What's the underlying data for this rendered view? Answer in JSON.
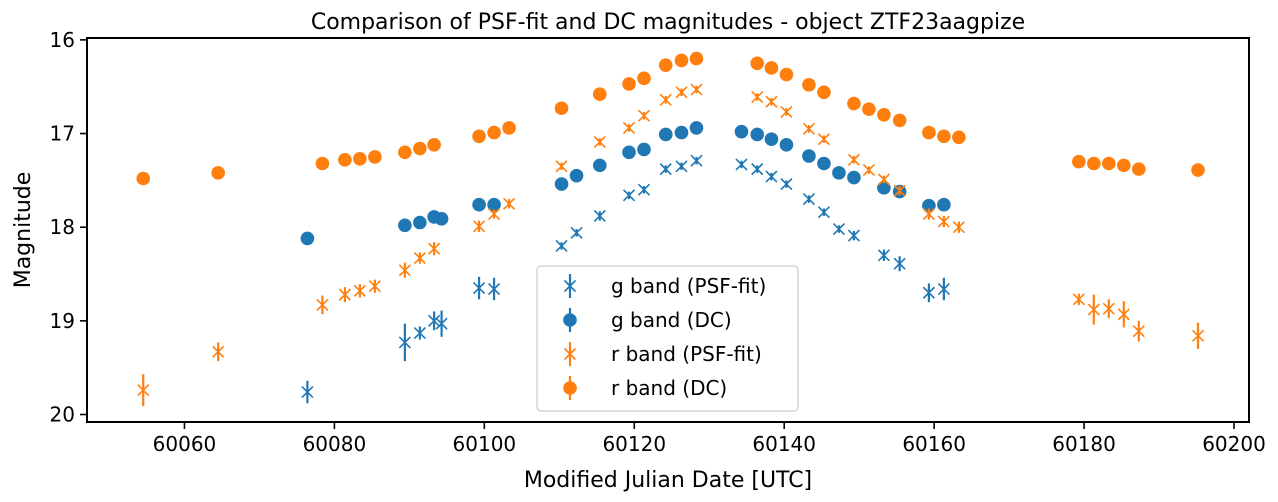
{
  "chart_data": {
    "type": "scatter",
    "title": "Comparison of PSF-fit and DC magnitudes - object ZTF23aagpize",
    "xlabel": "Modified Julian Date [UTC]",
    "ylabel": "Magnitude",
    "xlim": [
      60047,
      60202
    ],
    "ylim": [
      20.08,
      15.98
    ],
    "y_inverted": true,
    "xticks": [
      60060,
      60080,
      60100,
      60120,
      60140,
      60160,
      60180,
      60200
    ],
    "yticks": [
      16,
      17,
      18,
      19,
      20
    ],
    "grid": false,
    "legend_position": "bottom-center",
    "colors": {
      "g": "#1f77b4",
      "r": "#ff7f0e"
    },
    "series": [
      {
        "name": "g band (PSF-fit)",
        "marker": "x",
        "color": "#1f77b4",
        "x": [
          60076.4,
          60089.4,
          60091.4,
          60093.3,
          60094.3,
          60099.3,
          60101.3,
          60110.3,
          60112.3,
          60115.4,
          60119.3,
          60121.3,
          60124.2,
          60126.3,
          60128.3,
          60134.3,
          60136.4,
          60138.3,
          60140.3,
          60143.3,
          60145.3,
          60147.3,
          60149.3,
          60153.3,
          60155.4,
          60159.3,
          60161.3
        ],
        "y": [
          19.76,
          19.23,
          19.13,
          19.0,
          19.03,
          18.65,
          18.66,
          18.2,
          18.06,
          17.88,
          17.66,
          17.6,
          17.38,
          17.35,
          17.29,
          17.33,
          17.38,
          17.46,
          17.54,
          17.7,
          17.84,
          18.02,
          18.09,
          18.3,
          18.39,
          18.7,
          18.66
        ],
        "yerr": [
          0.12,
          0.2,
          0.07,
          0.1,
          0.14,
          0.12,
          0.12,
          0.04,
          0.04,
          0.05,
          0.04,
          0.04,
          0.04,
          0.04,
          0.04,
          0.04,
          0.04,
          0.04,
          0.04,
          0.04,
          0.04,
          0.04,
          0.05,
          0.06,
          0.08,
          0.1,
          0.12
        ]
      },
      {
        "name": "g band (DC)",
        "marker": "o",
        "color": "#1f77b4",
        "x": [
          60076.4,
          60089.4,
          60091.4,
          60093.3,
          60094.3,
          60099.3,
          60101.3,
          60110.3,
          60112.3,
          60115.4,
          60119.3,
          60121.3,
          60124.2,
          60126.3,
          60128.3,
          60134.3,
          60136.4,
          60138.3,
          60140.3,
          60143.3,
          60145.3,
          60147.3,
          60149.3,
          60153.3,
          60155.4,
          60159.3,
          60161.3
        ],
        "y": [
          18.12,
          17.98,
          17.95,
          17.89,
          17.91,
          17.76,
          17.76,
          17.54,
          17.45,
          17.34,
          17.2,
          17.17,
          17.01,
          16.99,
          16.94,
          16.98,
          17.01,
          17.06,
          17.12,
          17.24,
          17.32,
          17.42,
          17.47,
          17.58,
          17.62,
          17.77,
          17.76
        ],
        "yerr": []
      },
      {
        "name": "r band (PSF-fit)",
        "marker": "x",
        "color": "#ff7f0e",
        "x": [
          60054.5,
          60064.5,
          60078.4,
          60081.4,
          60083.4,
          60085.4,
          60089.4,
          60091.4,
          60093.3,
          60099.3,
          60101.3,
          60103.3,
          60110.3,
          60115.4,
          60119.3,
          60121.3,
          60124.2,
          60126.3,
          60128.3,
          60136.4,
          60138.3,
          60140.3,
          60143.3,
          60145.3,
          60149.3,
          60151.3,
          60153.3,
          60155.4,
          60159.3,
          60161.3,
          60163.3,
          60179.3,
          60181.3,
          60183.3,
          60185.3,
          60187.3,
          60195.2
        ],
        "y": [
          19.74,
          19.33,
          18.83,
          18.72,
          18.68,
          18.63,
          18.46,
          18.33,
          18.23,
          17.99,
          17.86,
          17.75,
          17.35,
          17.09,
          16.94,
          16.81,
          16.64,
          16.56,
          16.53,
          16.61,
          16.66,
          16.77,
          16.95,
          17.06,
          17.28,
          17.39,
          17.49,
          17.61,
          17.86,
          17.94,
          18.0,
          18.77,
          18.88,
          18.87,
          18.93,
          19.11,
          19.16
        ],
        "yerr": [
          0.17,
          0.1,
          0.1,
          0.08,
          0.07,
          0.07,
          0.08,
          0.06,
          0.07,
          0.06,
          0.05,
          0.05,
          0.04,
          0.04,
          0.04,
          0.04,
          0.04,
          0.04,
          0.04,
          0.04,
          0.04,
          0.04,
          0.04,
          0.04,
          0.04,
          0.04,
          0.04,
          0.05,
          0.06,
          0.06,
          0.06,
          0.06,
          0.16,
          0.1,
          0.14,
          0.11,
          0.14
        ]
      },
      {
        "name": "r band (DC)",
        "marker": "o",
        "color": "#ff7f0e",
        "x": [
          60054.5,
          60064.5,
          60078.4,
          60081.4,
          60083.4,
          60085.4,
          60089.4,
          60091.4,
          60093.3,
          60099.3,
          60101.3,
          60103.3,
          60110.3,
          60115.4,
          60119.3,
          60121.3,
          60124.2,
          60126.3,
          60128.3,
          60136.4,
          60138.3,
          60140.3,
          60143.3,
          60145.3,
          60149.3,
          60151.3,
          60153.3,
          60155.4,
          60159.3,
          60161.3,
          60163.3,
          60179.3,
          60181.3,
          60183.3,
          60185.3,
          60187.3,
          60195.2
        ],
        "y": [
          17.48,
          17.42,
          17.32,
          17.28,
          17.27,
          17.25,
          17.2,
          17.16,
          17.12,
          17.03,
          16.99,
          16.94,
          16.73,
          16.58,
          16.47,
          16.41,
          16.27,
          16.22,
          16.2,
          16.25,
          16.3,
          16.37,
          16.48,
          16.56,
          16.68,
          16.74,
          16.8,
          16.86,
          16.99,
          17.03,
          17.04,
          17.3,
          17.32,
          17.32,
          17.34,
          17.38,
          17.39
        ],
        "yerr": []
      }
    ]
  }
}
